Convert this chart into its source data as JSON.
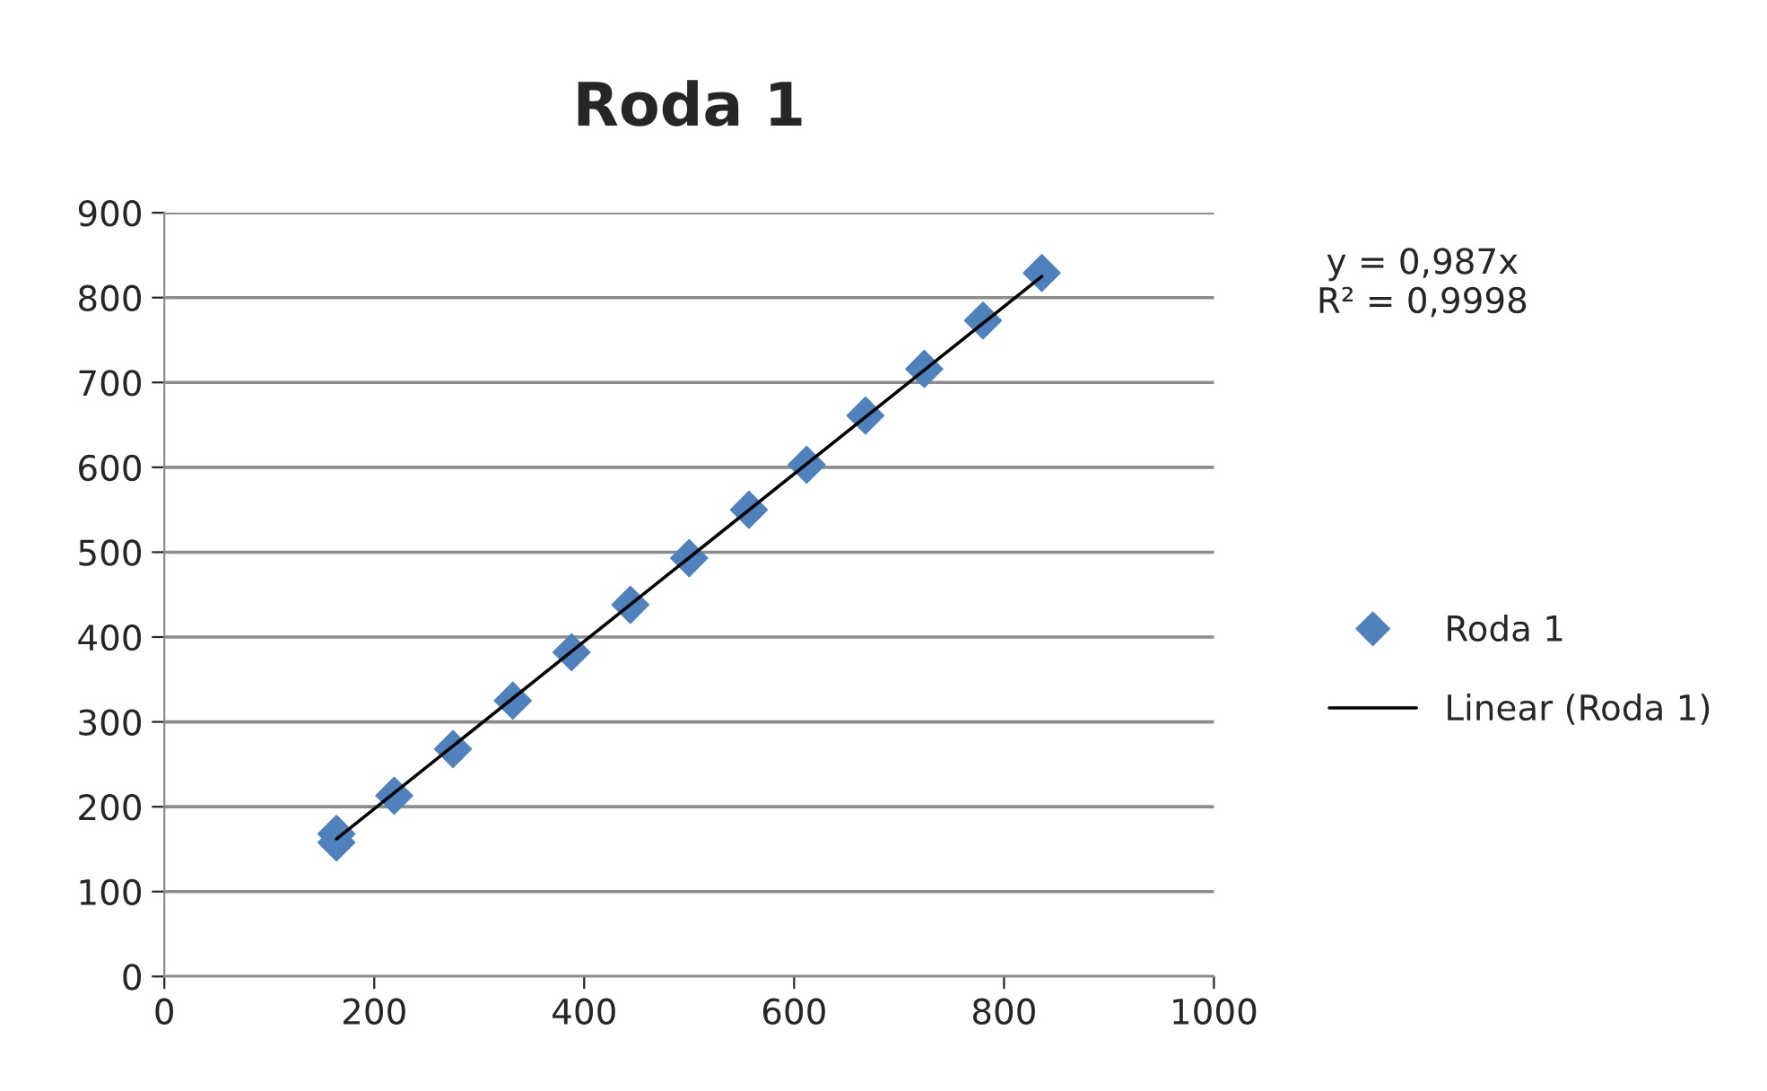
{
  "chart_data": {
    "type": "scatter",
    "title": "Roda 1",
    "series": [
      {
        "name": "Roda 1",
        "color": "#4f81bd",
        "marker": "diamond",
        "x": [
          164,
          164,
          219,
          275,
          332,
          388,
          444,
          500,
          557,
          612,
          668,
          724,
          780,
          836
        ],
        "values": [
          158,
          168,
          213,
          268,
          325,
          382,
          438,
          493,
          550,
          603,
          661,
          716,
          773,
          829
        ]
      },
      {
        "name": "Linear (Roda 1)",
        "type": "line",
        "color": "#000000",
        "x": [
          164,
          836
        ],
        "values": [
          162,
          825
        ]
      }
    ],
    "annotations": [
      "y = 0,987x\nR² = 0,9998"
    ],
    "xlim": [
      0,
      1000
    ],
    "xticks": [
      0,
      200,
      400,
      600,
      800,
      1000
    ],
    "ylim": [
      0,
      900
    ],
    "yticks": [
      0,
      100,
      200,
      300,
      400,
      500,
      600,
      700,
      800,
      900
    ],
    "grid": "y",
    "legend": "right"
  }
}
